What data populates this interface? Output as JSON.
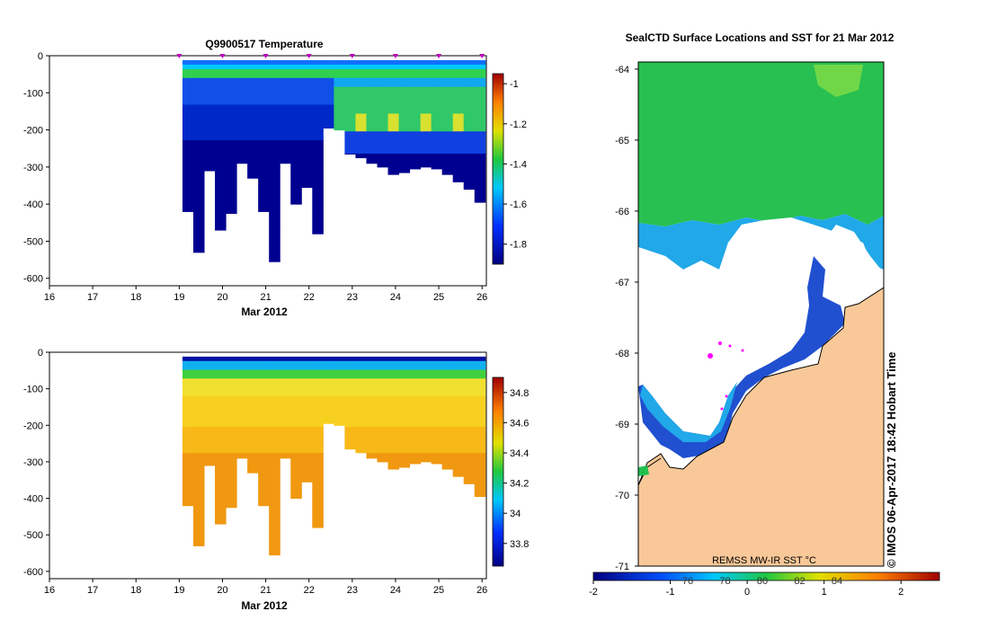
{
  "chart_data": [
    {
      "type": "heatmap",
      "title": "Q9900517  Temperature",
      "xlabel": "Mar 2012",
      "x_ticks": [
        "16",
        "17",
        "18",
        "19",
        "20",
        "21",
        "22",
        "23",
        "24",
        "25",
        "26"
      ],
      "y_ticks": [
        "0",
        "-100",
        "-200",
        "-300",
        "-400",
        "-500",
        "-600"
      ],
      "xlim": [
        16,
        26.1
      ],
      "ylim": [
        -620,
        0
      ],
      "colorbar": {
        "ticks": [
          "-1",
          "-1.2",
          "-1.4",
          "-1.6",
          "-1.8"
        ],
        "range": [
          -1.9,
          -0.95
        ]
      },
      "profile_markers_x": [
        19,
        20,
        21,
        22,
        23,
        24,
        25,
        26
      ],
      "profiles_time": [
        19.2,
        19.45,
        19.7,
        19.95,
        20.2,
        20.45,
        20.7,
        20.95,
        21.2,
        21.45,
        21.7,
        21.95,
        22.2,
        22.45,
        22.7,
        22.95,
        23.2,
        23.45,
        23.7,
        23.95,
        24.2,
        24.45,
        24.7,
        24.95,
        25.2,
        25.45,
        25.7,
        25.95
      ],
      "profiles_max_depth": [
        -420,
        -530,
        -310,
        -470,
        -425,
        -290,
        -330,
        -420,
        -555,
        -290,
        -400,
        -355,
        -480,
        -195,
        -200,
        -265,
        -275,
        -290,
        -300,
        -320,
        -315,
        -305,
        -300,
        -305,
        -320,
        -340,
        -360,
        -395
      ]
    },
    {
      "type": "heatmap",
      "title": "",
      "xlabel": "Mar 2012",
      "x_ticks": [
        "16",
        "17",
        "18",
        "19",
        "20",
        "21",
        "22",
        "23",
        "24",
        "25",
        "26"
      ],
      "y_ticks": [
        "0",
        "-100",
        "-200",
        "-300",
        "-400",
        "-500",
        "-600"
      ],
      "xlim": [
        16,
        26.1
      ],
      "ylim": [
        -620,
        0
      ],
      "colorbar": {
        "ticks": [
          "34.8",
          "34.6",
          "34.4",
          "34.2",
          "34",
          "33.8"
        ],
        "range": [
          33.65,
          34.9
        ]
      },
      "profiles_time": [
        19.2,
        19.45,
        19.7,
        19.95,
        20.2,
        20.45,
        20.7,
        20.95,
        21.2,
        21.45,
        21.7,
        21.95,
        22.2,
        22.45,
        22.7,
        22.95,
        23.2,
        23.45,
        23.7,
        23.95,
        24.2,
        24.45,
        24.7,
        24.95,
        25.2,
        25.45,
        25.7,
        25.95
      ],
      "profiles_max_depth": [
        -420,
        -530,
        -310,
        -470,
        -425,
        -290,
        -330,
        -420,
        -555,
        -290,
        -400,
        -355,
        -480,
        -195,
        -200,
        -265,
        -275,
        -290,
        -300,
        -320,
        -315,
        -305,
        -300,
        -305,
        -320,
        -340,
        -360,
        -395
      ]
    },
    {
      "type": "heatmap",
      "title": "SealCTD Surface Locations and SST for 21 Mar 2012",
      "y_ticks": [
        "-64",
        "-65",
        "-66",
        "-67",
        "-68",
        "-69",
        "-70",
        "-71"
      ],
      "ylim": [
        -71,
        -63.9
      ],
      "source_label": "REMSS MW-IR SST °C",
      "colorbar": {
        "ticks": [
          "-2",
          "-1",
          "0",
          "1",
          "2"
        ],
        "overlay_ticks": [
          "76",
          "78",
          "80",
          "82",
          "84"
        ],
        "range": [
          -2,
          2.5
        ]
      },
      "stamp": "© IMOS 06-Apr-2017 18:42 Hobart Time"
    }
  ]
}
